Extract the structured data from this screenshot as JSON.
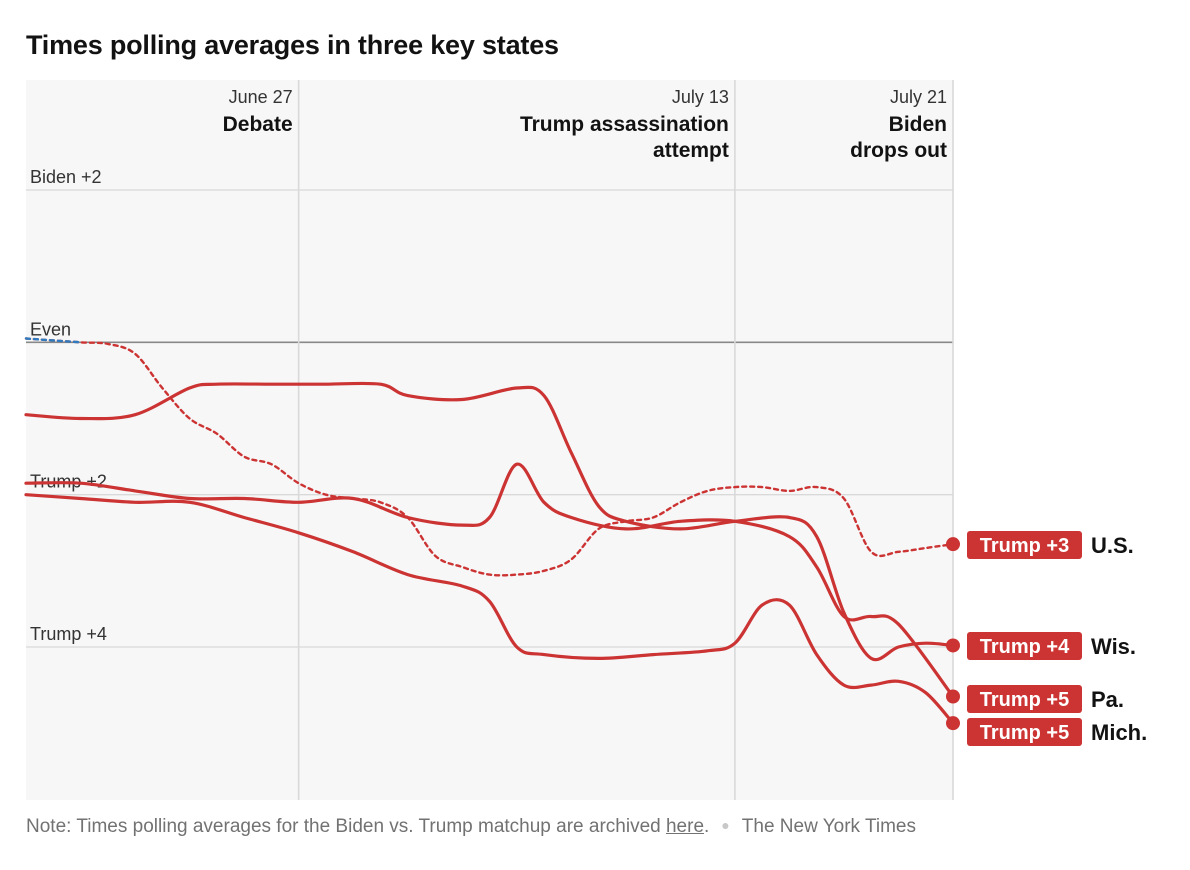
{
  "title": "Times polling averages in three key states",
  "note": {
    "text_before": "Note: Times polling averages for the Biden vs. Trump matchup are archived ",
    "link": "here",
    "text_after": ".",
    "source": "The New York Times"
  },
  "colors": {
    "trump_red": "#cc3333",
    "biden_blue": "#2f7bbf",
    "grid": "#d9d9d9",
    "zero_line": "#888888",
    "plot_bg": "#f7f7f7"
  },
  "chart_data": {
    "type": "line",
    "title": "Times polling averages in three key states",
    "x_domain": [
      "2024-06-17",
      "2024-07-21"
    ],
    "y_domain": [
      2,
      -5.6
    ],
    "y_unit": "margin, percentage points (positive = Biden lead)",
    "y_ticks": [
      {
        "value": 2,
        "label": "Biden +2"
      },
      {
        "value": 0,
        "label": "Even"
      },
      {
        "value": -2,
        "label": "Trump +2"
      },
      {
        "value": -4,
        "label": "Trump +4"
      }
    ],
    "events": [
      {
        "date": "2024-06-27",
        "date_label": "June 27",
        "label": [
          "Debate"
        ]
      },
      {
        "date": "2024-07-13",
        "date_label": "July 13",
        "label": [
          "Trump assassination",
          "attempt"
        ]
      },
      {
        "date": "2024-07-21",
        "date_label": "July 21",
        "label": [
          "Biden",
          "drops out"
        ]
      }
    ],
    "series": [
      {
        "name": "U.S.",
        "style": "dashed",
        "end_label": "Trump +3",
        "points": [
          [
            "2024-06-17",
            0.05
          ],
          [
            "2024-06-19",
            0.0
          ],
          [
            "2024-06-20",
            -0.02
          ],
          [
            "2024-06-21",
            -0.15
          ],
          [
            "2024-06-22",
            -0.6
          ],
          [
            "2024-06-23",
            -1.0
          ],
          [
            "2024-06-24",
            -1.2
          ],
          [
            "2024-06-25",
            -1.5
          ],
          [
            "2024-06-26",
            -1.6
          ],
          [
            "2024-06-27",
            -1.85
          ],
          [
            "2024-06-28",
            -2.0
          ],
          [
            "2024-06-29",
            -2.05
          ],
          [
            "2024-06-30",
            -2.1
          ],
          [
            "2024-07-01",
            -2.3
          ],
          [
            "2024-07-02",
            -2.8
          ],
          [
            "2024-07-03",
            -2.95
          ],
          [
            "2024-07-04",
            -3.05
          ],
          [
            "2024-07-05",
            -3.05
          ],
          [
            "2024-07-06",
            -3.0
          ],
          [
            "2024-07-07",
            -2.85
          ],
          [
            "2024-07-08",
            -2.45
          ],
          [
            "2024-07-09",
            -2.35
          ],
          [
            "2024-07-10",
            -2.3
          ],
          [
            "2024-07-11",
            -2.1
          ],
          [
            "2024-07-12",
            -1.95
          ],
          [
            "2024-07-13",
            -1.9
          ],
          [
            "2024-07-14",
            -1.9
          ],
          [
            "2024-07-15",
            -1.95
          ],
          [
            "2024-07-16",
            -1.9
          ],
          [
            "2024-07-17",
            -2.05
          ],
          [
            "2024-07-18",
            -2.75
          ],
          [
            "2024-07-19",
            -2.75
          ],
          [
            "2024-07-20",
            -2.7
          ],
          [
            "2024-07-21",
            -2.65
          ]
        ]
      },
      {
        "name": "Wis.",
        "style": "solid",
        "end_label": "Trump +4",
        "points": [
          [
            "2024-06-17",
            -0.95
          ],
          [
            "2024-06-19",
            -1.0
          ],
          [
            "2024-06-21",
            -0.95
          ],
          [
            "2024-06-23",
            -0.6
          ],
          [
            "2024-06-24",
            -0.55
          ],
          [
            "2024-06-26",
            -0.55
          ],
          [
            "2024-06-27",
            -0.55
          ],
          [
            "2024-06-28",
            -0.55
          ],
          [
            "2024-06-30",
            -0.55
          ],
          [
            "2024-07-01",
            -0.7
          ],
          [
            "2024-07-03",
            -0.75
          ],
          [
            "2024-07-05",
            -0.6
          ],
          [
            "2024-07-06",
            -0.7
          ],
          [
            "2024-07-07",
            -1.45
          ],
          [
            "2024-07-08",
            -2.15
          ],
          [
            "2024-07-09",
            -2.35
          ],
          [
            "2024-07-11",
            -2.45
          ],
          [
            "2024-07-13",
            -2.35
          ],
          [
            "2024-07-15",
            -2.3
          ],
          [
            "2024-07-16",
            -2.55
          ],
          [
            "2024-07-17",
            -3.55
          ],
          [
            "2024-07-18",
            -4.15
          ],
          [
            "2024-07-19",
            -4.0
          ],
          [
            "2024-07-20",
            -3.95
          ],
          [
            "2024-07-21",
            -3.98
          ]
        ]
      },
      {
        "name": "Pa.",
        "style": "solid",
        "end_label": "Trump +5",
        "points": [
          [
            "2024-06-17",
            -1.85
          ],
          [
            "2024-06-19",
            -1.85
          ],
          [
            "2024-06-21",
            -1.95
          ],
          [
            "2024-06-23",
            -2.05
          ],
          [
            "2024-06-25",
            -2.05
          ],
          [
            "2024-06-27",
            -2.1
          ],
          [
            "2024-06-29",
            -2.05
          ],
          [
            "2024-07-01",
            -2.3
          ],
          [
            "2024-07-03",
            -2.4
          ],
          [
            "2024-07-04",
            -2.3
          ],
          [
            "2024-07-05",
            -1.6
          ],
          [
            "2024-07-06",
            -2.1
          ],
          [
            "2024-07-07",
            -2.3
          ],
          [
            "2024-07-09",
            -2.45
          ],
          [
            "2024-07-11",
            -2.35
          ],
          [
            "2024-07-13",
            -2.35
          ],
          [
            "2024-07-15",
            -2.55
          ],
          [
            "2024-07-16",
            -2.95
          ],
          [
            "2024-07-17",
            -3.6
          ],
          [
            "2024-07-18",
            -3.6
          ],
          [
            "2024-07-19",
            -3.7
          ],
          [
            "2024-07-21",
            -4.65
          ]
        ]
      },
      {
        "name": "Mich.",
        "style": "solid",
        "end_label": "Trump +5",
        "points": [
          [
            "2024-06-17",
            -2.0
          ],
          [
            "2024-06-19",
            -2.05
          ],
          [
            "2024-06-21",
            -2.1
          ],
          [
            "2024-06-23",
            -2.1
          ],
          [
            "2024-06-25",
            -2.3
          ],
          [
            "2024-06-27",
            -2.5
          ],
          [
            "2024-06-29",
            -2.75
          ],
          [
            "2024-07-01",
            -3.05
          ],
          [
            "2024-07-03",
            -3.2
          ],
          [
            "2024-07-04",
            -3.4
          ],
          [
            "2024-07-05",
            -4.0
          ],
          [
            "2024-07-06",
            -4.1
          ],
          [
            "2024-07-08",
            -4.15
          ],
          [
            "2024-07-10",
            -4.1
          ],
          [
            "2024-07-12",
            -4.05
          ],
          [
            "2024-07-13",
            -3.95
          ],
          [
            "2024-07-14",
            -3.45
          ],
          [
            "2024-07-15",
            -3.45
          ],
          [
            "2024-07-16",
            -4.1
          ],
          [
            "2024-07-17",
            -4.5
          ],
          [
            "2024-07-18",
            -4.5
          ],
          [
            "2024-07-19",
            -4.45
          ],
          [
            "2024-07-20",
            -4.6
          ],
          [
            "2024-07-21",
            -5.0
          ]
        ]
      }
    ]
  }
}
